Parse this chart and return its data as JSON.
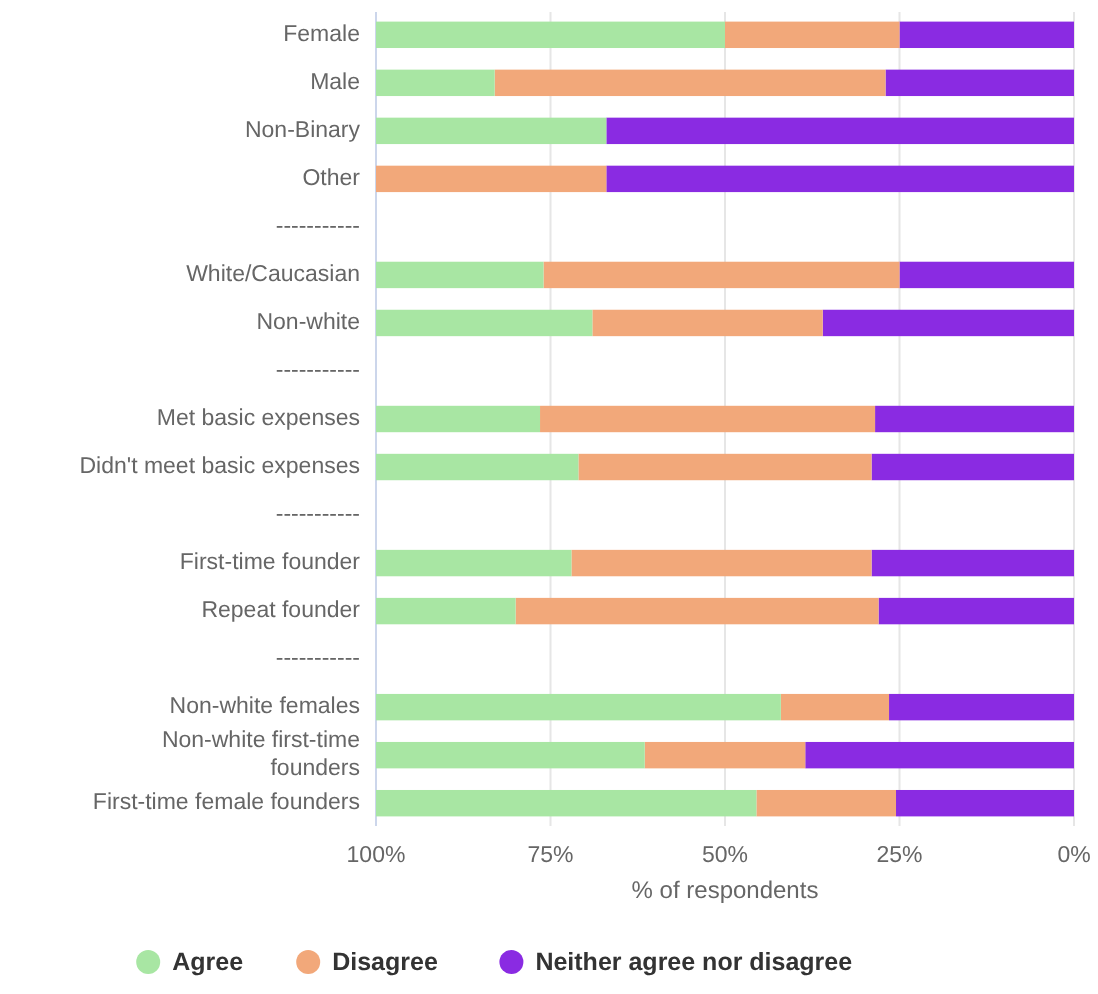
{
  "chart_data": {
    "type": "bar",
    "orientation": "horizontal",
    "stacked": true,
    "xlabel": "% of respondents",
    "categories": [
      "Female",
      "Male",
      "Non-Binary",
      "Other",
      "-----------",
      "White/Caucasian",
      "Non-white",
      "-----------",
      "Met basic expenses",
      "Didn't meet basic expenses",
      "-----------",
      "First-time founder",
      "Repeat founder",
      "-----------",
      "Non-white females",
      "Non-white first-time founders",
      "First-time female founders"
    ],
    "series": [
      {
        "name": "Neither agree nor disagree",
        "color": "#8a2be2",
        "values": [
          25,
          27,
          67,
          67,
          null,
          25,
          36,
          null,
          28.5,
          29,
          null,
          29,
          28,
          null,
          26.5,
          38.5,
          25.5
        ]
      },
      {
        "name": "Disagree",
        "color": "#f2a87a",
        "values": [
          25,
          56,
          null,
          33,
          null,
          51,
          33,
          null,
          48,
          42,
          null,
          43,
          52,
          null,
          15.5,
          23,
          20
        ]
      },
      {
        "name": "Agree",
        "color": "#a8e6a3",
        "values": [
          50,
          17,
          33,
          null,
          null,
          24,
          31,
          null,
          23.5,
          29,
          null,
          28,
          20,
          null,
          58,
          38.5,
          54.5
        ]
      }
    ],
    "xlim": [
      100,
      0
    ],
    "xticks": [
      {
        "value": 100,
        "label": "100%"
      },
      {
        "value": 75,
        "label": "75%"
      },
      {
        "value": 50,
        "label": "50%"
      },
      {
        "value": 25,
        "label": "25%"
      },
      {
        "value": 0,
        "label": "0%"
      }
    ],
    "grid": "x",
    "legend": "bottom"
  }
}
